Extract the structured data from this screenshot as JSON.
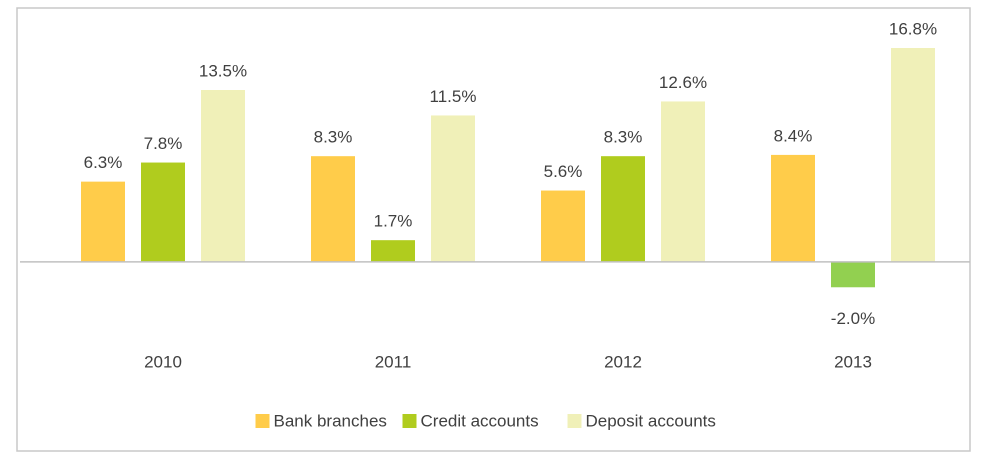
{
  "chart_data": {
    "type": "bar",
    "categories": [
      "2010",
      "2011",
      "2012",
      "2013"
    ],
    "series": [
      {
        "name": "Bank branches",
        "color": "#ffcc4a",
        "values": [
          6.3,
          8.3,
          5.6,
          8.4
        ],
        "value_labels": [
          "6.3%",
          "8.3%",
          "5.6%",
          "8.4%"
        ]
      },
      {
        "name": "Credit accounts",
        "color": "#b0cc1e",
        "negative_color": "#92d050",
        "values": [
          7.8,
          1.7,
          8.3,
          -2.0
        ],
        "value_labels": [
          "7.8%",
          "1.7%",
          "8.3%",
          "-2.0%"
        ]
      },
      {
        "name": "Deposit accounts",
        "color": "#f0f0b8",
        "values": [
          13.5,
          11.5,
          12.6,
          16.8
        ],
        "value_labels": [
          "13.5%",
          "11.5%",
          "12.6%",
          "16.8%"
        ]
      }
    ],
    "ylim": [
      -3,
      19
    ],
    "legend": "bottom"
  }
}
